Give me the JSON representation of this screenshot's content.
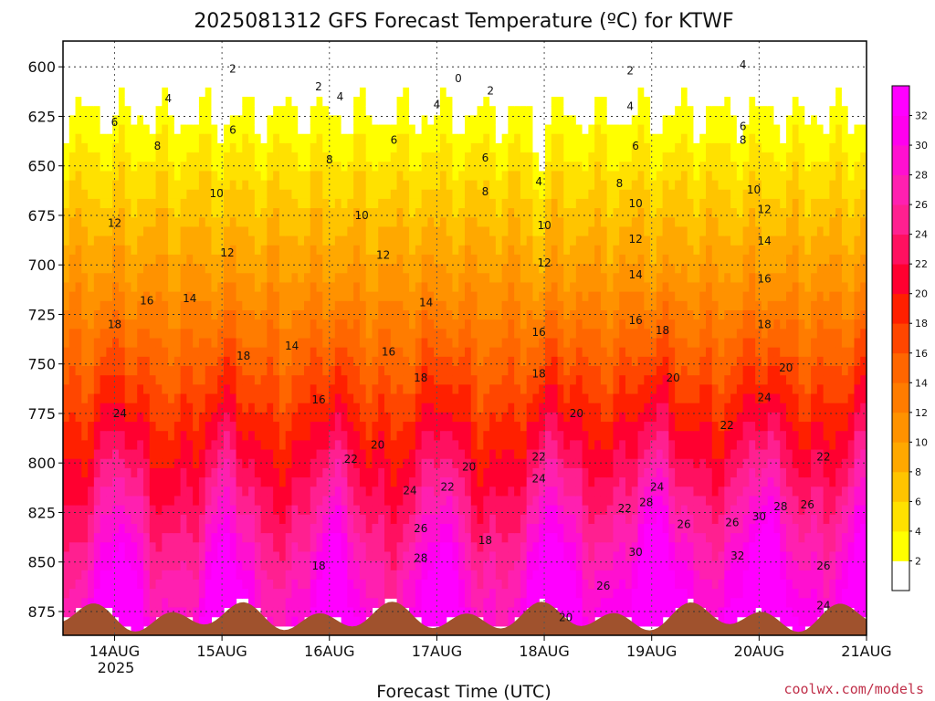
{
  "chart_data": {
    "type": "heatmap",
    "title": "2025081312 GFS Forecast Temperature (ºC) for KTWF",
    "xlabel": "Forecast Time (UTC)",
    "ylabel": "",
    "y_scale": "pressure (hPa), inverted",
    "ylim": [
      887,
      587
    ],
    "x_ticks": [
      "14AUG",
      "15AUG",
      "16AUG",
      "17AUG",
      "18AUG",
      "19AUG",
      "20AUG",
      "21AUG"
    ],
    "x_year_label": "2025",
    "y_ticks": [
      600,
      625,
      650,
      675,
      700,
      725,
      750,
      775,
      800,
      825,
      850,
      875
    ],
    "colorbar": {
      "levels": [
        2,
        4,
        6,
        8,
        10,
        12,
        14,
        16,
        18,
        20,
        22,
        24,
        26,
        28,
        30,
        32
      ],
      "colors": [
        "#ffffff",
        "#ffff00",
        "#ffe100",
        "#ffc400",
        "#ffa800",
        "#ff9200",
        "#ff7c00",
        "#ff6600",
        "#ff4600",
        "#ff2000",
        "#ff0030",
        "#ff1060",
        "#ff2090",
        "#ff20b0",
        "#ff10d0",
        "#ff00ee",
        "#ff00ff"
      ]
    },
    "grid": true,
    "terrain_color": "#a0522d",
    "contour_labels": [
      {
        "t": 1.1,
        "p": 601,
        "v": "2"
      },
      {
        "t": 0.5,
        "p": 616,
        "v": "4"
      },
      {
        "t": 0.0,
        "p": 628,
        "v": "6"
      },
      {
        "t": 0.4,
        "p": 640,
        "v": "8"
      },
      {
        "t": 0.0,
        "p": 679,
        "v": "12"
      },
      {
        "t": 0.3,
        "p": 718,
        "v": "16"
      },
      {
        "t": 0.0,
        "p": 730,
        "v": "18"
      },
      {
        "t": 0.05,
        "p": 775,
        "v": "24"
      },
      {
        "t": 1.9,
        "p": 610,
        "v": "2"
      },
      {
        "t": 1.1,
        "p": 632,
        "v": "6"
      },
      {
        "t": 0.95,
        "p": 664,
        "v": "10"
      },
      {
        "t": 1.05,
        "p": 694,
        "v": "12"
      },
      {
        "t": 0.7,
        "p": 717,
        "v": "14"
      },
      {
        "t": 1.2,
        "p": 746,
        "v": "18"
      },
      {
        "t": 1.65,
        "p": 741,
        "v": "14"
      },
      {
        "t": 1.9,
        "p": 768,
        "v": "16"
      },
      {
        "t": 1.9,
        "p": 852,
        "v": "18"
      },
      {
        "t": 2.1,
        "p": 615,
        "v": "4"
      },
      {
        "t": 2.0,
        "p": 647,
        "v": "8"
      },
      {
        "t": 2.3,
        "p": 675,
        "v": "10"
      },
      {
        "t": 2.5,
        "p": 695,
        "v": "12"
      },
      {
        "t": 2.45,
        "p": 791,
        "v": "20"
      },
      {
        "t": 2.2,
        "p": 798,
        "v": "22"
      },
      {
        "t": 2.55,
        "p": 744,
        "v": "16"
      },
      {
        "t": 2.6,
        "p": 637,
        "v": "6"
      },
      {
        "t": 2.9,
        "p": 719,
        "v": "14"
      },
      {
        "t": 2.85,
        "p": 757,
        "v": "18"
      },
      {
        "t": 3.0,
        "p": 619,
        "v": "4"
      },
      {
        "t": 2.75,
        "p": 814,
        "v": "24"
      },
      {
        "t": 3.1,
        "p": 812,
        "v": "22"
      },
      {
        "t": 3.3,
        "p": 802,
        "v": "20"
      },
      {
        "t": 2.85,
        "p": 833,
        "v": "26"
      },
      {
        "t": 2.85,
        "p": 848,
        "v": "28"
      },
      {
        "t": 3.2,
        "p": 606,
        "v": "0"
      },
      {
        "t": 3.5,
        "p": 612,
        "v": "2"
      },
      {
        "t": 3.45,
        "p": 646,
        "v": "6"
      },
      {
        "t": 3.45,
        "p": 663,
        "v": "8"
      },
      {
        "t": 4.0,
        "p": 699,
        "v": "12"
      },
      {
        "t": 4.0,
        "p": 680,
        "v": "10"
      },
      {
        "t": 3.95,
        "p": 658,
        "v": "4"
      },
      {
        "t": 3.95,
        "p": 734,
        "v": "16"
      },
      {
        "t": 3.95,
        "p": 755,
        "v": "18"
      },
      {
        "t": 3.95,
        "p": 797,
        "v": "22"
      },
      {
        "t": 3.95,
        "p": 808,
        "v": "24"
      },
      {
        "t": 3.45,
        "p": 839,
        "v": "18"
      },
      {
        "t": 4.3,
        "p": 775,
        "v": "20"
      },
      {
        "t": 4.2,
        "p": 878,
        "v": "20"
      },
      {
        "t": 4.8,
        "p": 602,
        "v": "2"
      },
      {
        "t": 4.8,
        "p": 620,
        "v": "4"
      },
      {
        "t": 4.85,
        "p": 640,
        "v": "6"
      },
      {
        "t": 4.7,
        "p": 659,
        "v": "8"
      },
      {
        "t": 4.85,
        "p": 669,
        "v": "10"
      },
      {
        "t": 4.85,
        "p": 687,
        "v": "12"
      },
      {
        "t": 4.85,
        "p": 705,
        "v": "14"
      },
      {
        "t": 4.85,
        "p": 728,
        "v": "16"
      },
      {
        "t": 5.1,
        "p": 733,
        "v": "18"
      },
      {
        "t": 5.2,
        "p": 757,
        "v": "20"
      },
      {
        "t": 4.75,
        "p": 823,
        "v": "22"
      },
      {
        "t": 4.55,
        "p": 862,
        "v": "26"
      },
      {
        "t": 4.85,
        "p": 845,
        "v": "30"
      },
      {
        "t": 5.05,
        "p": 812,
        "v": "24"
      },
      {
        "t": 4.95,
        "p": 820,
        "v": "28"
      },
      {
        "t": 5.3,
        "p": 831,
        "v": "26"
      },
      {
        "t": 5.85,
        "p": 599,
        "v": "4"
      },
      {
        "t": 5.85,
        "p": 630,
        "v": "6"
      },
      {
        "t": 5.85,
        "p": 637,
        "v": "8"
      },
      {
        "t": 5.95,
        "p": 662,
        "v": "10"
      },
      {
        "t": 6.05,
        "p": 672,
        "v": "12"
      },
      {
        "t": 6.05,
        "p": 688,
        "v": "14"
      },
      {
        "t": 6.05,
        "p": 707,
        "v": "16"
      },
      {
        "t": 6.05,
        "p": 730,
        "v": "18"
      },
      {
        "t": 6.25,
        "p": 752,
        "v": "20"
      },
      {
        "t": 6.05,
        "p": 767,
        "v": "24"
      },
      {
        "t": 5.7,
        "p": 781,
        "v": "22"
      },
      {
        "t": 5.75,
        "p": 830,
        "v": "26"
      },
      {
        "t": 6.2,
        "p": 822,
        "v": "28"
      },
      {
        "t": 6.6,
        "p": 797,
        "v": "22"
      },
      {
        "t": 6.0,
        "p": 827,
        "v": "30"
      },
      {
        "t": 6.45,
        "p": 821,
        "v": "26"
      },
      {
        "t": 5.8,
        "p": 847,
        "v": "32"
      },
      {
        "t": 6.6,
        "p": 852,
        "v": "26"
      },
      {
        "t": 6.6,
        "p": 872,
        "v": "24"
      }
    ]
  },
  "credit": "coolwx.com/models"
}
